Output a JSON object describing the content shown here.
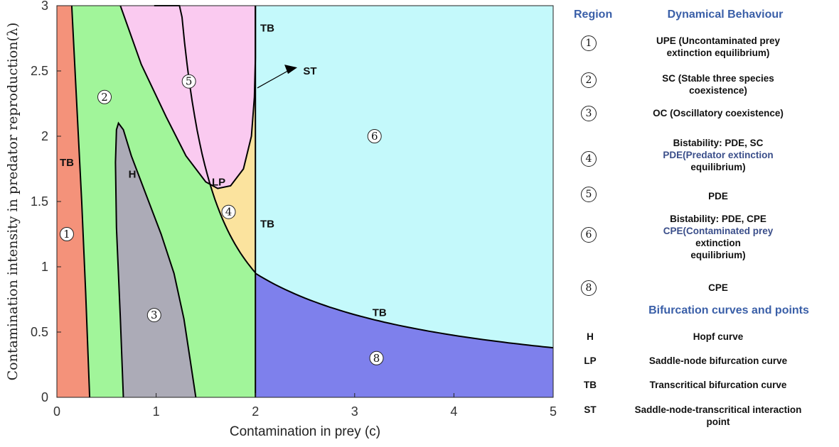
{
  "chart_data": {
    "type": "area",
    "xlabel": "Contamination in prey (c)",
    "ylabel": "Contamination intensity in predator reproduction(λ)",
    "xlim": [
      0,
      5
    ],
    "ylim": [
      0,
      3
    ],
    "xticks": [
      "0",
      "1",
      "2",
      "3",
      "4",
      "5"
    ],
    "yticks": [
      "0",
      "0.5",
      "1",
      "1.5",
      "2",
      "2.5",
      "3"
    ],
    "regions": [
      {
        "id": "1",
        "color": "#f4927a",
        "boundary": [
          [
            0,
            0
          ],
          [
            0,
            3
          ],
          [
            0.15,
            3
          ],
          [
            0.25,
            1.5
          ],
          [
            0.33,
            0
          ]
        ]
      },
      {
        "id": "2",
        "color": "#a1f59a"
      },
      {
        "id": "3",
        "color": "#acabb7",
        "boundary": [
          [
            0.67,
            0
          ],
          [
            0.6,
            2.1
          ],
          [
            0.8,
            1.8
          ],
          [
            1.1,
            1.2
          ],
          [
            1.3,
            0.6
          ],
          [
            1.4,
            0
          ]
        ]
      },
      {
        "id": "4",
        "color": "#fbe39e"
      },
      {
        "id": "5",
        "color": "#facaf0"
      },
      {
        "id": "6",
        "color": "#c4f9fb"
      },
      {
        "id": "8",
        "color": "#7e80ec"
      }
    ],
    "region_label_positions": [
      {
        "id": "1",
        "x": 0.1,
        "y": 1.25
      },
      {
        "id": "2",
        "x": 0.48,
        "y": 2.3
      },
      {
        "id": "3",
        "x": 0.98,
        "y": 0.63
      },
      {
        "id": "4",
        "x": 1.73,
        "y": 1.42
      },
      {
        "id": "5",
        "x": 1.33,
        "y": 2.42
      },
      {
        "id": "6",
        "x": 3.2,
        "y": 2.0
      },
      {
        "id": "8",
        "x": 3.22,
        "y": 0.3
      }
    ],
    "curve_labels": [
      {
        "text": "TB",
        "x": 0.1,
        "y": 1.8
      },
      {
        "text": "H",
        "x": 0.76,
        "y": 1.71
      },
      {
        "text": "LP",
        "x": 1.63,
        "y": 1.65
      },
      {
        "text": "TB",
        "x": 2.12,
        "y": 2.83
      },
      {
        "text": "ST",
        "x": 2.55,
        "y": 2.5
      },
      {
        "text": "TB",
        "x": 2.12,
        "y": 1.33
      },
      {
        "text": "TB",
        "x": 3.25,
        "y": 0.65
      }
    ]
  },
  "legend": {
    "region_header": "Region",
    "behaviour_header": "Dynamical Behaviour",
    "rows": [
      {
        "num": "1",
        "lines": [
          "UPE (Uncontaminated prey",
          "extinction equilibrium)"
        ]
      },
      {
        "num": "2",
        "lines": [
          "SC (Stable three species",
          "coexistence)"
        ]
      },
      {
        "num": "3",
        "lines": [
          "OC (Oscillatory coexistence)"
        ]
      },
      {
        "num": "4",
        "lines": [
          "Bistability:  PDE, SC",
          "PDE(Predator extinction",
          "equilibrium)"
        ]
      },
      {
        "num": "5",
        "lines": [
          "PDE"
        ]
      },
      {
        "num": "6",
        "lines": [
          "Bistability: PDE, CPE",
          "CPE(Contaminated prey",
          "extinction",
          "equilibrium)"
        ]
      },
      {
        "num": "8",
        "lines": [
          "CPE"
        ]
      }
    ],
    "bifurcation_header": "Bifurcation curves and points",
    "bifurcations": [
      {
        "code": "H",
        "desc": "Hopf curve"
      },
      {
        "code": "LP",
        "desc": "Saddle-node bifurcation curve"
      },
      {
        "code": "TB",
        "desc": "Transcritical bifurcation curve"
      },
      {
        "code": "ST",
        "desc_lines": [
          "Saddle-node-transcritical interaction",
          "point"
        ]
      }
    ]
  }
}
